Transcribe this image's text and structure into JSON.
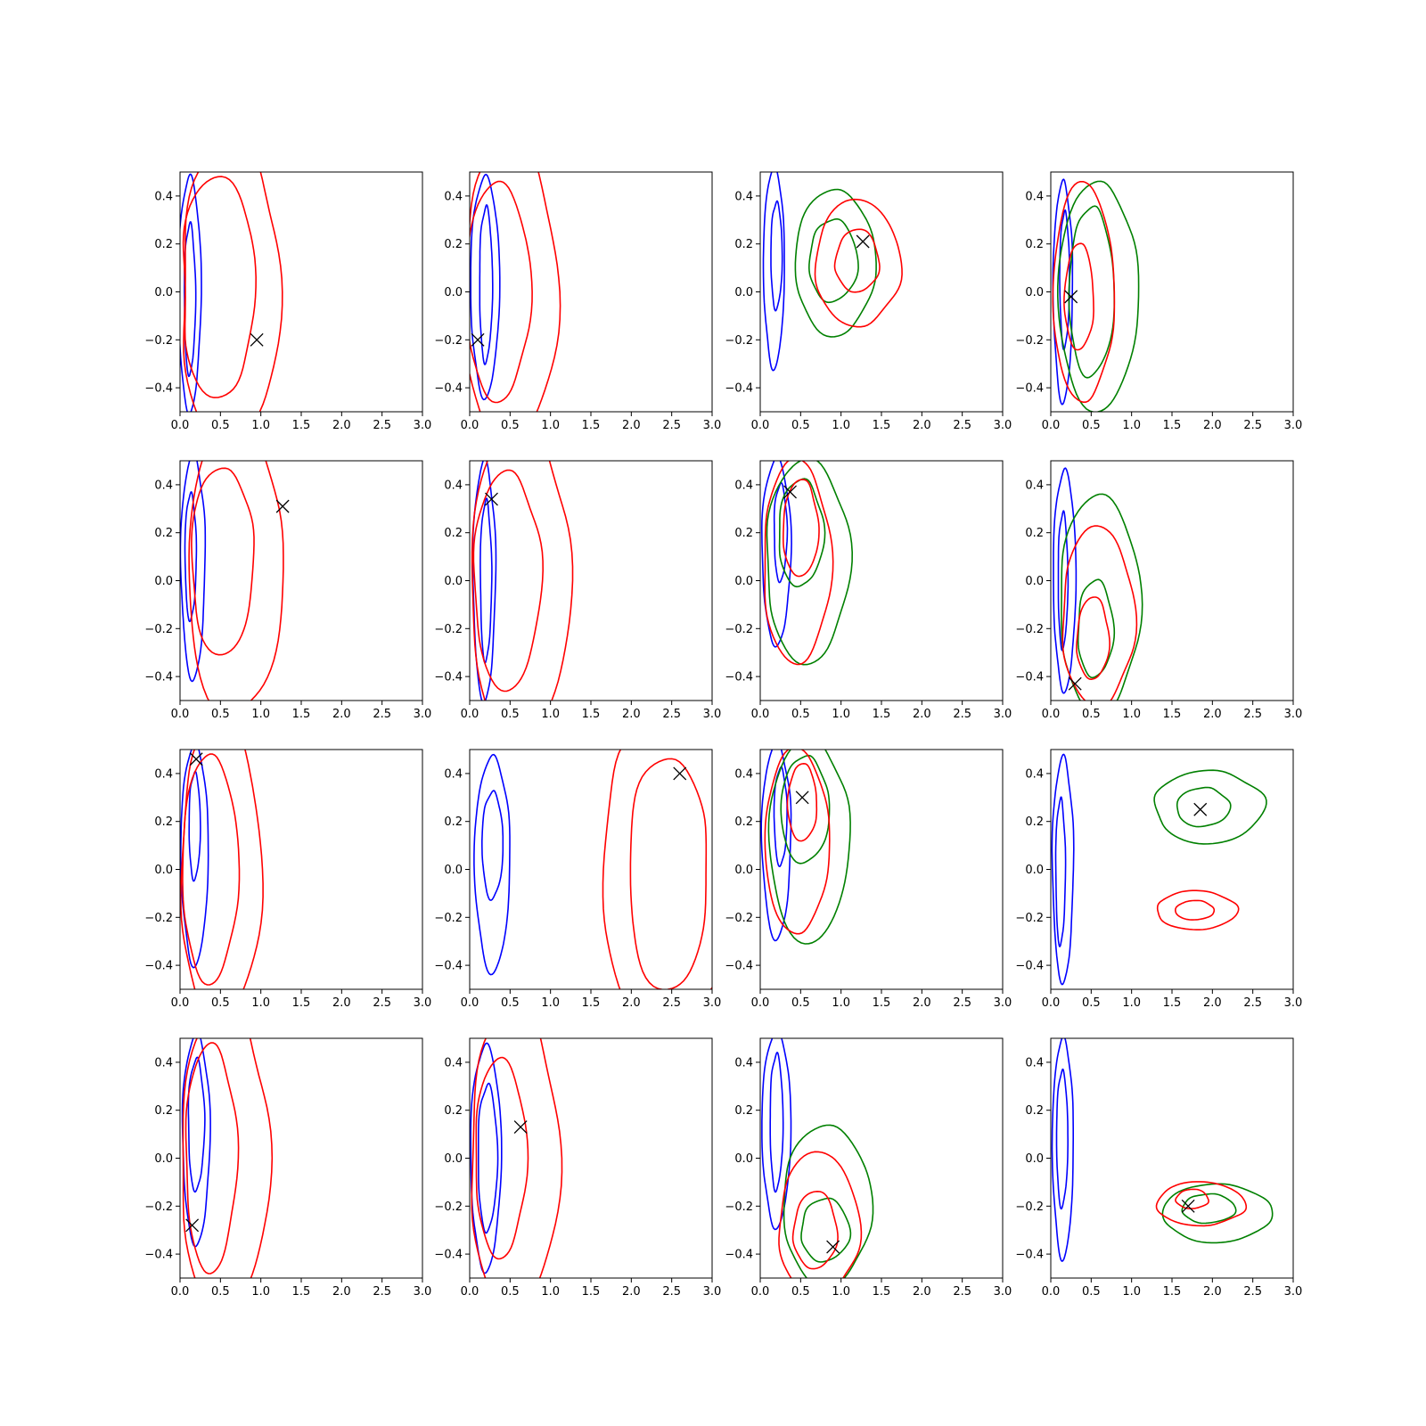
{
  "chart_data": {
    "type": "contour",
    "grid": false,
    "legend": null,
    "layout": "4x4 subplot grid",
    "xlim": [
      0,
      3
    ],
    "ylim": [
      -0.5,
      0.5
    ],
    "xticks": [
      "0.0",
      "0.5",
      "1.0",
      "1.5",
      "2.0",
      "2.5",
      "3.0"
    ],
    "yticks": [
      "−0.4",
      "−0.2",
      "0.0",
      "0.2",
      "0.4"
    ],
    "colors": {
      "blue": "#0000ff",
      "red": "#ff0000",
      "green": "#008000",
      "marker": "#000000"
    },
    "marker": "x",
    "panels": [
      {
        "row": 0,
        "col": 0,
        "marker": [
          0.95,
          -0.2
        ],
        "series": [
          {
            "color": "blue",
            "levels": [
              {
                "cx": 0.12,
                "cy": -0.01,
                "rx": 0.14,
                "ry": 0.48
              },
              {
                "cx": 0.12,
                "cy": -0.03,
                "rx": 0.07,
                "ry": 0.31
              }
            ]
          },
          {
            "color": "red",
            "levels": [
              {
                "cx": 0.47,
                "cy": 0.02,
                "rx": 0.5,
                "ry": 0.45,
                "w": 0.25
              },
              {
                "cx": 0.62,
                "cy": 0,
                "rx": 0.65,
                "ry": 0.62,
                "w": 0.15
              }
            ]
          }
        ]
      },
      {
        "row": 0,
        "col": 1,
        "marker": [
          0.1,
          -0.2
        ],
        "series": [
          {
            "color": "blue",
            "levels": [
              {
                "cx": 0.19,
                "cy": 0.02,
                "rx": 0.18,
                "ry": 0.45
              },
              {
                "cx": 0.2,
                "cy": 0.03,
                "rx": 0.08,
                "ry": 0.32
              }
            ]
          },
          {
            "color": "red",
            "levels": [
              {
                "cx": 0.35,
                "cy": 0,
                "rx": 0.4,
                "ry": 0.45
              },
              {
                "cx": 0.5,
                "cy": 0,
                "rx": 0.58,
                "ry": 0.64
              }
            ]
          }
        ]
      },
      {
        "row": 0,
        "col": 2,
        "marker": [
          1.27,
          0.21
        ],
        "series": [
          {
            "color": "blue",
            "levels": [
              {
                "cx": 0.17,
                "cy": 0.1,
                "rx": 0.13,
                "ry": 0.41
              },
              {
                "cx": 0.2,
                "cy": 0.15,
                "rx": 0.07,
                "ry": 0.22
              }
            ]
          },
          {
            "color": "green",
            "levels": [
              {
                "cx": 0.92,
                "cy": 0.12,
                "rx": 0.5,
                "ry": 0.3
              },
              {
                "cx": 0.9,
                "cy": 0.13,
                "rx": 0.3,
                "ry": 0.17
              }
            ]
          },
          {
            "color": "red",
            "levels": [
              {
                "cx": 1.2,
                "cy": 0.12,
                "rx": 0.53,
                "ry": 0.26
              },
              {
                "cx": 1.2,
                "cy": 0.13,
                "rx": 0.27,
                "ry": 0.13
              }
            ]
          }
        ]
      },
      {
        "row": 0,
        "col": 3,
        "marker": [
          0.25,
          -0.02
        ],
        "series": [
          {
            "color": "blue",
            "levels": [
              {
                "cx": 0.15,
                "cy": 0.0,
                "rx": 0.12,
                "ry": 0.45
              },
              {
                "cx": 0.17,
                "cy": 0.05,
                "rx": 0.06,
                "ry": 0.28
              }
            ]
          },
          {
            "color": "green",
            "levels": [
              {
                "cx": 0.58,
                "cy": -0.02,
                "rx": 0.5,
                "ry": 0.47
              },
              {
                "cx": 0.5,
                "cy": 0.0,
                "rx": 0.28,
                "ry": 0.35
              }
            ]
          },
          {
            "color": "red",
            "levels": [
              {
                "cx": 0.4,
                "cy": 0.0,
                "rx": 0.38,
                "ry": 0.45
              },
              {
                "cx": 0.35,
                "cy": -0.02,
                "rx": 0.18,
                "ry": 0.22
              }
            ]
          }
        ]
      },
      {
        "row": 1,
        "col": 0,
        "marker": [
          1.27,
          0.31
        ],
        "series": [
          {
            "color": "blue",
            "levels": [
              {
                "cx": 0.16,
                "cy": 0.06,
                "rx": 0.15,
                "ry": 0.46
              },
              {
                "cx": 0.13,
                "cy": 0.1,
                "rx": 0.07,
                "ry": 0.26
              }
            ]
          },
          {
            "color": "red",
            "levels": [
              {
                "cx": 0.52,
                "cy": 0.08,
                "rx": 0.42,
                "ry": 0.38,
                "w": 0.2
              },
              {
                "cx": 0.68,
                "cy": 0.05,
                "rx": 0.62,
                "ry": 0.6,
                "w": 0.12
              }
            ]
          }
        ]
      },
      {
        "row": 1,
        "col": 1,
        "marker": [
          0.27,
          0.34
        ],
        "series": [
          {
            "color": "blue",
            "levels": [
              {
                "cx": 0.18,
                "cy": 0.0,
                "rx": 0.14,
                "ry": 0.49
              },
              {
                "cx": 0.2,
                "cy": 0.0,
                "rx": 0.07,
                "ry": 0.33
              }
            ]
          },
          {
            "color": "red",
            "levels": [
              {
                "cx": 0.46,
                "cy": 0.0,
                "rx": 0.42,
                "ry": 0.45
              },
              {
                "cx": 0.62,
                "cy": 0,
                "rx": 0.62,
                "ry": 0.66
              }
            ]
          }
        ]
      },
      {
        "row": 1,
        "col": 2,
        "marker": [
          0.37,
          0.37
        ],
        "series": [
          {
            "color": "blue",
            "levels": [
              {
                "cx": 0.2,
                "cy": 0.12,
                "rx": 0.18,
                "ry": 0.38
              },
              {
                "cx": 0.25,
                "cy": 0.2,
                "rx": 0.08,
                "ry": 0.2
              }
            ]
          },
          {
            "color": "green",
            "levels": [
              {
                "cx": 0.58,
                "cy": 0.08,
                "rx": 0.52,
                "ry": 0.42
              },
              {
                "cx": 0.5,
                "cy": 0.2,
                "rx": 0.28,
                "ry": 0.22
              }
            ]
          },
          {
            "color": "red",
            "levels": [
              {
                "cx": 0.45,
                "cy": 0.08,
                "rx": 0.42,
                "ry": 0.42
              },
              {
                "cx": 0.5,
                "cy": 0.22,
                "rx": 0.22,
                "ry": 0.2
              }
            ]
          }
        ]
      },
      {
        "row": 1,
        "col": 3,
        "marker": [
          0.3,
          -0.43
        ],
        "series": [
          {
            "color": "blue",
            "levels": [
              {
                "cx": 0.17,
                "cy": 0.0,
                "rx": 0.14,
                "ry": 0.45
              },
              {
                "cx": 0.15,
                "cy": 0.0,
                "rx": 0.06,
                "ry": 0.28
              }
            ]
          },
          {
            "color": "green",
            "levels": [
              {
                "cx": 0.6,
                "cy": -0.1,
                "rx": 0.5,
                "ry": 0.45
              },
              {
                "cx": 0.55,
                "cy": -0.2,
                "rx": 0.22,
                "ry": 0.2
              }
            ]
          },
          {
            "color": "red",
            "levels": [
              {
                "cx": 0.58,
                "cy": -0.15,
                "rx": 0.45,
                "ry": 0.37
              },
              {
                "cx": 0.52,
                "cy": -0.24,
                "rx": 0.2,
                "ry": 0.17
              }
            ]
          }
        ]
      },
      {
        "row": 2,
        "col": 0,
        "marker": [
          0.2,
          0.46
        ],
        "series": [
          {
            "color": "blue",
            "levels": [
              {
                "cx": 0.18,
                "cy": 0.06,
                "rx": 0.17,
                "ry": 0.45
              },
              {
                "cx": 0.18,
                "cy": 0.18,
                "rx": 0.07,
                "ry": 0.22
              }
            ]
          },
          {
            "color": "red",
            "levels": [
              {
                "cx": 0.37,
                "cy": 0.0,
                "rx": 0.35,
                "ry": 0.47
              },
              {
                "cx": 0.5,
                "cy": 0.0,
                "rx": 0.5,
                "ry": 0.64
              }
            ]
          }
        ]
      },
      {
        "row": 2,
        "col": 1,
        "marker": [
          2.6,
          0.4
        ],
        "series": [
          {
            "color": "blue",
            "levels": [
              {
                "cx": 0.28,
                "cy": 0.02,
                "rx": 0.22,
                "ry": 0.44
              },
              {
                "cx": 0.28,
                "cy": 0.1,
                "rx": 0.13,
                "ry": 0.22
              }
            ]
          },
          {
            "color": "red",
            "levels": [
              {
                "cx": 2.45,
                "cy": -0.02,
                "rx": 0.55,
                "ry": 0.47,
                "w": 0.3
              },
              {
                "cx": 2.45,
                "cy": 0,
                "rx": 0.9,
                "ry": 0.64,
                "w": 0.2
              }
            ]
          }
        ]
      },
      {
        "row": 2,
        "col": 2,
        "marker": [
          0.52,
          0.3
        ],
        "series": [
          {
            "color": "blue",
            "levels": [
              {
                "cx": 0.2,
                "cy": 0.12,
                "rx": 0.18,
                "ry": 0.4
              },
              {
                "cx": 0.25,
                "cy": 0.22,
                "rx": 0.08,
                "ry": 0.2
              }
            ]
          },
          {
            "color": "green",
            "levels": [
              {
                "cx": 0.6,
                "cy": 0.12,
                "rx": 0.5,
                "ry": 0.42
              },
              {
                "cx": 0.55,
                "cy": 0.25,
                "rx": 0.3,
                "ry": 0.22
              }
            ]
          },
          {
            "color": "red",
            "levels": [
              {
                "cx": 0.45,
                "cy": 0.12,
                "rx": 0.4,
                "ry": 0.38
              },
              {
                "cx": 0.52,
                "cy": 0.28,
                "rx": 0.18,
                "ry": 0.16
              }
            ]
          }
        ]
      },
      {
        "row": 2,
        "col": 3,
        "marker": [
          1.85,
          0.25
        ],
        "series": [
          {
            "color": "blue",
            "levels": [
              {
                "cx": 0.15,
                "cy": 0.0,
                "rx": 0.13,
                "ry": 0.46
              },
              {
                "cx": 0.12,
                "cy": -0.01,
                "rx": 0.06,
                "ry": 0.3
              }
            ]
          },
          {
            "color": "green",
            "levels": [
              {
                "cx": 1.95,
                "cy": 0.26,
                "rx": 0.68,
                "ry": 0.15
              },
              {
                "cx": 1.88,
                "cy": 0.26,
                "rx": 0.33,
                "ry": 0.08
              }
            ]
          },
          {
            "color": "red",
            "levels": [
              {
                "cx": 1.8,
                "cy": -0.17,
                "rx": 0.5,
                "ry": 0.08
              },
              {
                "cx": 1.78,
                "cy": -0.17,
                "rx": 0.24,
                "ry": 0.04
              }
            ]
          }
        ]
      },
      {
        "row": 3,
        "col": 0,
        "marker": [
          0.15,
          -0.28
        ],
        "series": [
          {
            "color": "blue",
            "levels": [
              {
                "cx": 0.2,
                "cy": 0.08,
                "rx": 0.17,
                "ry": 0.43
              },
              {
                "cx": 0.2,
                "cy": 0.14,
                "rx": 0.1,
                "ry": 0.27
              }
            ]
          },
          {
            "color": "red",
            "levels": [
              {
                "cx": 0.38,
                "cy": 0.0,
                "rx": 0.32,
                "ry": 0.47
              },
              {
                "cx": 0.55,
                "cy": 0.0,
                "rx": 0.55,
                "ry": 0.64
              }
            ]
          }
        ]
      },
      {
        "row": 3,
        "col": 1,
        "marker": [
          0.63,
          0.13
        ],
        "series": [
          {
            "color": "blue",
            "levels": [
              {
                "cx": 0.2,
                "cy": 0.0,
                "rx": 0.19,
                "ry": 0.46
              },
              {
                "cx": 0.22,
                "cy": 0.0,
                "rx": 0.12,
                "ry": 0.3
              }
            ]
          },
          {
            "color": "red",
            "levels": [
              {
                "cx": 0.38,
                "cy": 0.0,
                "rx": 0.32,
                "ry": 0.41
              },
              {
                "cx": 0.55,
                "cy": 0.0,
                "rx": 0.55,
                "ry": 0.64
              }
            ]
          }
        ]
      },
      {
        "row": 3,
        "col": 2,
        "marker": [
          0.9,
          -0.37
        ],
        "series": [
          {
            "color": "blue",
            "levels": [
              {
                "cx": 0.2,
                "cy": 0.12,
                "rx": 0.18,
                "ry": 0.4
              },
              {
                "cx": 0.2,
                "cy": 0.15,
                "rx": 0.08,
                "ry": 0.28
              }
            ]
          },
          {
            "color": "green",
            "levels": [
              {
                "cx": 0.82,
                "cy": -0.2,
                "rx": 0.55,
                "ry": 0.33
              },
              {
                "cx": 0.8,
                "cy": -0.3,
                "rx": 0.3,
                "ry": 0.13
              }
            ]
          },
          {
            "color": "red",
            "levels": [
              {
                "cx": 0.72,
                "cy": -0.28,
                "rx": 0.5,
                "ry": 0.3
              },
              {
                "cx": 0.68,
                "cy": -0.3,
                "rx": 0.27,
                "ry": 0.16
              }
            ]
          }
        ]
      },
      {
        "row": 3,
        "col": 3,
        "marker": [
          1.7,
          -0.2
        ],
        "series": [
          {
            "color": "blue",
            "levels": [
              {
                "cx": 0.15,
                "cy": 0.04,
                "rx": 0.13,
                "ry": 0.45
              },
              {
                "cx": 0.14,
                "cy": 0.08,
                "rx": 0.07,
                "ry": 0.28
              }
            ]
          },
          {
            "color": "green",
            "levels": [
              {
                "cx": 2.05,
                "cy": -0.23,
                "rx": 0.68,
                "ry": 0.12
              },
              {
                "cx": 1.95,
                "cy": -0.21,
                "rx": 0.33,
                "ry": 0.06
              }
            ]
          },
          {
            "color": "red",
            "levels": [
              {
                "cx": 1.85,
                "cy": -0.19,
                "rx": 0.55,
                "ry": 0.09
              },
              {
                "cx": 1.75,
                "cy": -0.17,
                "rx": 0.2,
                "ry": 0.04
              }
            ]
          }
        ]
      }
    ]
  }
}
